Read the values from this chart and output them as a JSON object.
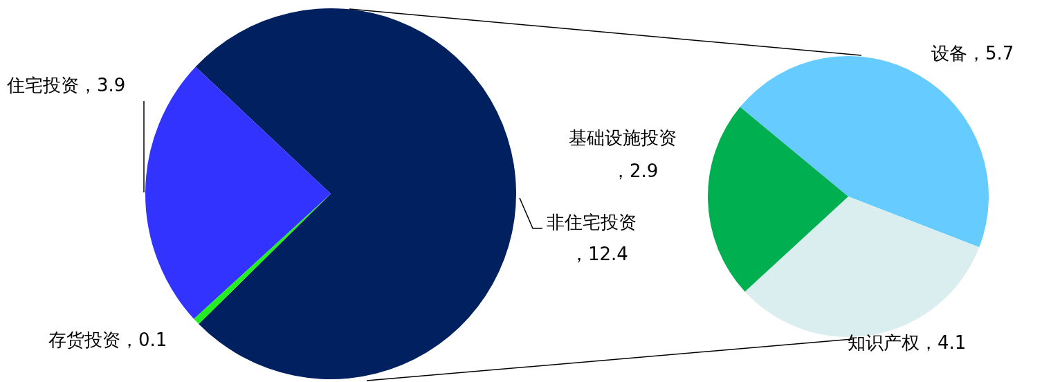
{
  "chart_data": [
    {
      "type": "pie",
      "categories": [
        "非住宅投资",
        "存货投资",
        "住宅投资"
      ],
      "values": [
        12.4,
        0.1,
        3.9
      ],
      "colors": [
        "#002060",
        "#22ee22",
        "#3333ff"
      ],
      "value_labels": [
        "，12.4",
        "，0.1",
        "，3.9"
      ]
    },
    {
      "type": "pie",
      "categories": [
        "设备",
        "知识产权",
        "基础设施投资"
      ],
      "values": [
        5.7,
        4.1,
        2.9
      ],
      "colors": [
        "#66ccff",
        "#daeef0",
        "#00b050"
      ],
      "value_labels": [
        "，5.7",
        "，4.1",
        "，2.9"
      ]
    }
  ]
}
